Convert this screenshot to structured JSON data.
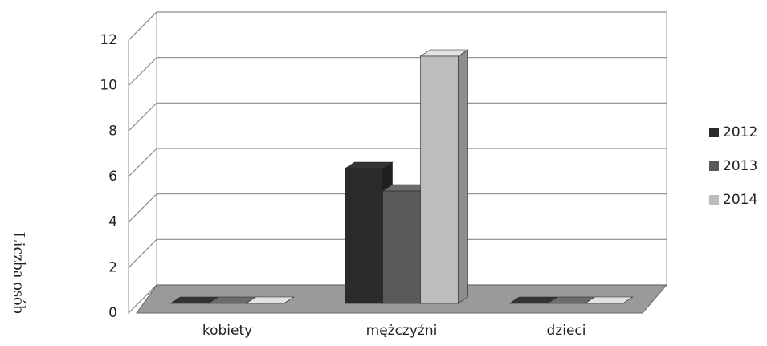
{
  "chart_data": {
    "type": "bar3d",
    "y_label": "Liczba osób",
    "categories": [
      "kobiety",
      "mężczyźni",
      "dzieci"
    ],
    "series": [
      {
        "name": "2012",
        "color": "#2b2b2b",
        "values": [
          0,
          6,
          0
        ]
      },
      {
        "name": "2013",
        "color": "#5a5a5a",
        "values": [
          0,
          5,
          0
        ]
      },
      {
        "name": "2014",
        "color": "#bdbdbd",
        "values": [
          0,
          11,
          0
        ]
      }
    ],
    "ylim": [
      0,
      12
    ],
    "yticks": [
      0,
      2,
      4,
      6,
      8,
      10,
      12
    ],
    "grid": true,
    "legend": "right"
  }
}
